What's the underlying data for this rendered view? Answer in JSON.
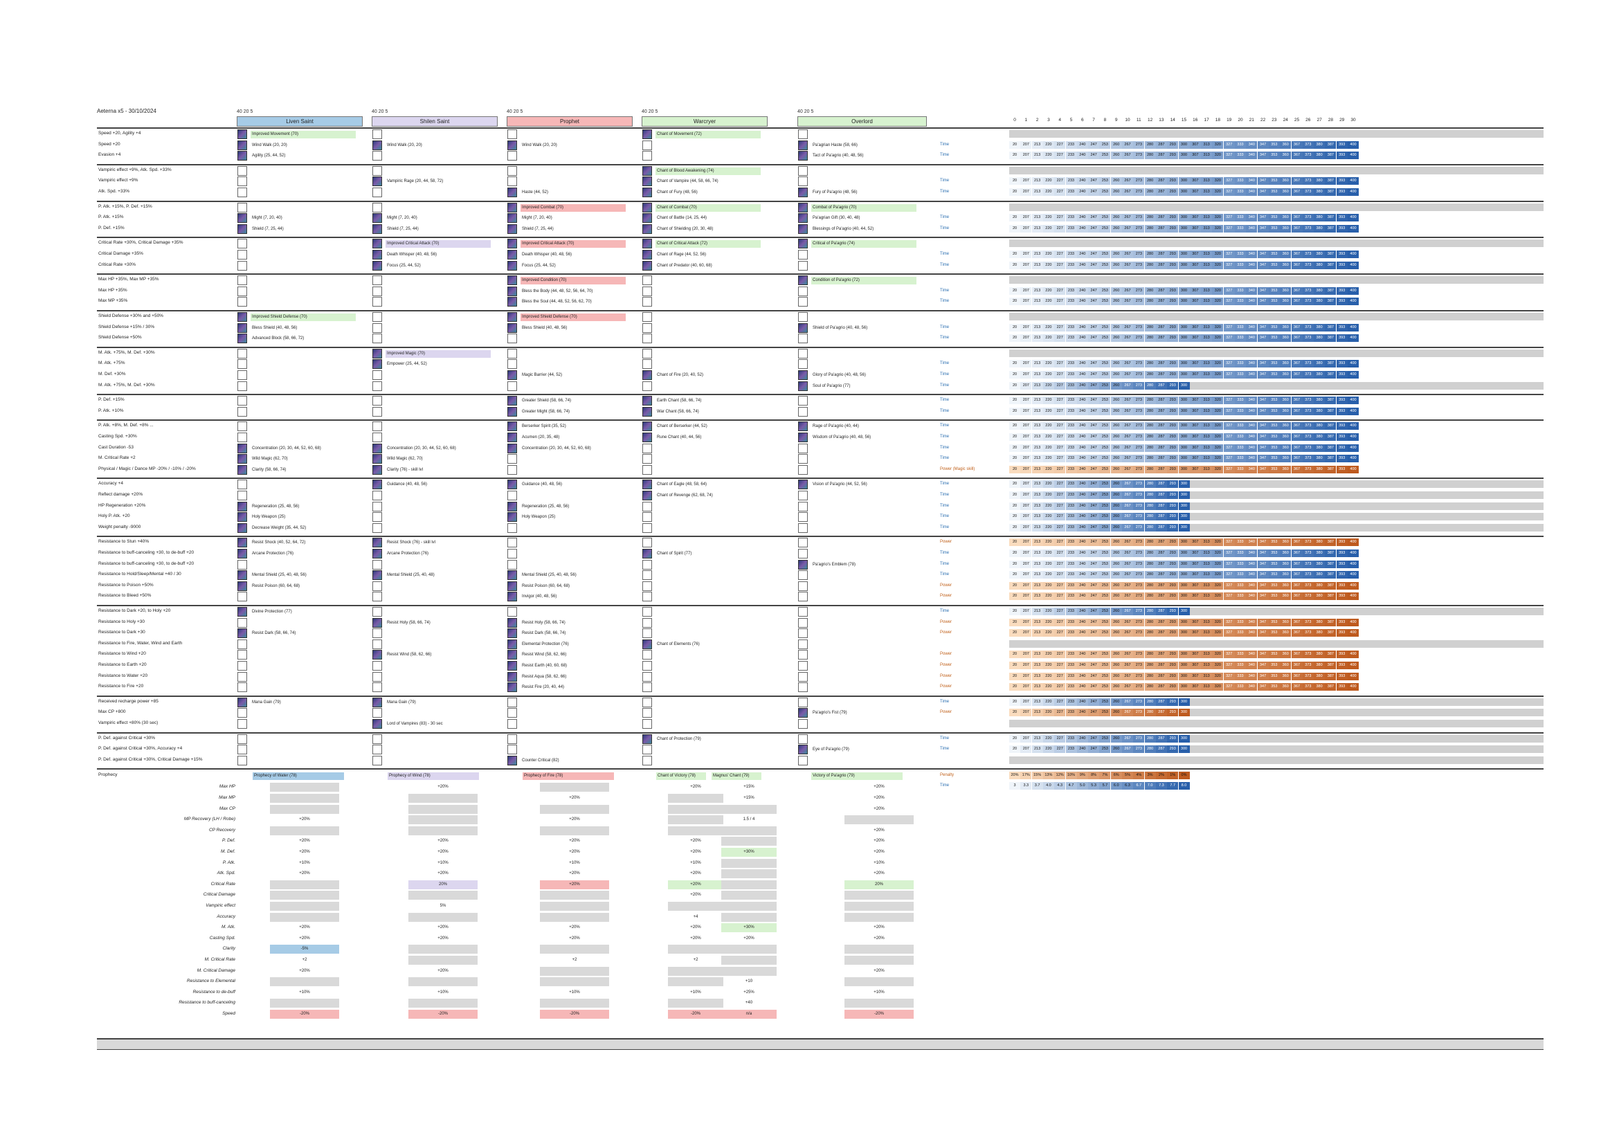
{
  "title": "Aeterna x5 - 30/10/2024",
  "classes": [
    {
      "name": "Liven Saint",
      "lvl": "40  20  5",
      "color": "#a6cbe6"
    },
    {
      "name": "Shilen Saint",
      "lvl": "40  20  5",
      "color": "#dcd6ef"
    },
    {
      "name": "Prophet",
      "lvl": "40  20  5",
      "color": "#f6b7b7"
    },
    {
      "name": "Warcryer",
      "lvl": "40  20  5",
      "color": "#d7f2cf"
    },
    {
      "name": "Overlord",
      "lvl": "40  20  5",
      "color": "#d7f2cf"
    }
  ],
  "col_numbers": [
    "0",
    "1",
    "2",
    "3",
    "4",
    "5",
    "6",
    "7",
    "8",
    "9",
    "10",
    "11",
    "12",
    "13",
    "14",
    "15",
    "16",
    "17",
    "18",
    "19",
    "20",
    "21",
    "22",
    "23",
    "24",
    "25",
    "26",
    "27",
    "28",
    "29",
    "30"
  ],
  "time_values": [
    "20",
    "207",
    "213",
    "220",
    "227",
    "233",
    "240",
    "247",
    "253",
    "260",
    "267",
    "273",
    "280",
    "287",
    "293",
    "300",
    "307",
    "313",
    "320",
    "327",
    "333",
    "340",
    "347",
    "353",
    "360",
    "367",
    "373",
    "380",
    "387",
    "393",
    "400"
  ],
  "sections": [
    {
      "rows": [
        {
          "effect": "Speed +20, Agility +4",
          "s1": "Improved Movement (70)",
          "s4": "Chant of Movement (72)",
          "tag": ""
        },
        {
          "effect": "Speed +20",
          "s1": "Wind Walk (20, 20)",
          "s2": "Wind Walk (20, 20)",
          "s3": "Wind Walk (20, 20)",
          "s5": "Pa'agrian Haste (58, 66)",
          "tag": "Time"
        },
        {
          "effect": "Evasion +4",
          "s1": "Agility (25, 44, 52)",
          "s5": "Tact of Pa'agrio (40, 48, 56)",
          "tag": "Time"
        }
      ]
    },
    {
      "rows": [
        {
          "effect": "Vampiric effect +9%, Atk. Spd. +33%",
          "s4": "Chant of Blood Awakening (74)",
          "tag": ""
        },
        {
          "effect": "Vampiric effect +9%",
          "s2": "Vampiric Rage (20, 44, 58, 72)",
          "s4": "Chant of Vampire (44, 58, 66, 74)",
          "tag": "Time"
        },
        {
          "effect": "Atk. Spd. +33%",
          "s3": "Haste (44, 52)",
          "s4": "Chant of Fury (48, 56)",
          "s5": "Fury of Pa'agrio (48, 56)",
          "tag": "Time"
        }
      ]
    },
    {
      "rows": [
        {
          "effect": "P. Atk. +15%, P. Def. +15%",
          "s3": "Improved Combat (70)",
          "s4": "Chant of Combat (70)",
          "s5": "Combat of Pa'agrio (70)",
          "tag": ""
        },
        {
          "effect": "P. Atk. +15%",
          "s1": "Might (7, 20, 40)",
          "s2": "Might (7, 20, 40)",
          "s3": "Might (7, 20, 40)",
          "s4": "Chant of Battle (14, 25, 44)",
          "s5": "Pa'agrian Gift (30, 40, 48)",
          "tag": "Time"
        },
        {
          "effect": "P. Def. +15%",
          "s1": "Shield (7, 25, 44)",
          "s2": "Shield (7, 25, 44)",
          "s3": "Shield (7, 25, 44)",
          "s4": "Chant of Shielding (20, 30, 48)",
          "s5": "Blessings of Pa'agrio (40, 44, 52)",
          "tag": "Time"
        }
      ]
    },
    {
      "rows": [
        {
          "effect": "Critical Rate +30%, Critical Damage +35%",
          "s2": "Improved Critical Attack (70)",
          "s3": "Improved Critical Attack (70)",
          "s4": "Chant of Critical Attack (72)",
          "s5": "Critical of Pa'agrio (74)",
          "tag": ""
        },
        {
          "effect": "Critical Damage +35%",
          "s2": "Death Whisper (40, 48, 56)",
          "s3": "Death Whisper (40, 48, 56)",
          "s4": "Chant of Rage (44, 52, 56)",
          "tag": "Time"
        },
        {
          "effect": "Critical Rate +30%",
          "s2": "Focus (25, 44, 52)",
          "s3": "Focus (25, 44, 52)",
          "s4": "Chant of Predator (40, 60, 68)",
          "tag": "Time"
        }
      ]
    },
    {
      "rows": [
        {
          "effect": "Max HP +35%, Max MP +35%",
          "s3": "Improved Condition (70)",
          "s5": "Condition of Pa'agrio (72)",
          "tag": ""
        },
        {
          "effect": "Max HP +35%",
          "s3": "Bless the Body (44, 48, 52, 56, 64, 70)",
          "tag": "Time"
        },
        {
          "effect": "Max MP +35%",
          "s3": "Bless the Soul (44, 48, 52, 56, 62, 70)",
          "tag": "Time"
        }
      ]
    },
    {
      "rows": [
        {
          "effect": "Shield Defense +30% and +50%",
          "s1": "Improved Shield Defense (70)",
          "s3": "Improved Shield Defense (70)",
          "tag": ""
        },
        {
          "effect": "Shield Defense +15% / 30%",
          "s1": "Bless Shield (40, 48, 56)",
          "s3": "Bless Shield (40, 48, 56)",
          "s5": "Shield of Pa'agrio (40, 48, 56)",
          "tag": "Time"
        },
        {
          "effect": "Shield Defense +50%",
          "s1": "Advanced Block (58, 66, 72)",
          "tag": "Time"
        }
      ]
    },
    {
      "rows": [
        {
          "effect": "M. Atk. +75%, M. Def. +30%",
          "s2": "Improved Magic (70)",
          "tag": ""
        },
        {
          "effect": "M. Atk. +75%",
          "s2": "Empower (25, 44, 52)",
          "tag": "Time"
        },
        {
          "effect": "M. Def. +30%",
          "s3": "Magic Barrier (44, 52)",
          "s4": "Chant of Fire (20, 40, 52)",
          "s5": "Glory of Pa'agrio (40, 48, 56)",
          "tag": "Time"
        },
        {
          "effect": "M. Atk. +75%, M. Def. +30%",
          "s5": "Soul of Pa'agrio (77)",
          "tag": "Time"
        }
      ]
    },
    {
      "rows": [
        {
          "effect": "P. Def. +15%",
          "s3": "Greater Shield (58, 66, 74)",
          "s4": "Earth Chant (58, 66, 74)",
          "tag": "Time"
        },
        {
          "effect": "P. Atk. +10%",
          "s3": "Greater Might (58, 66, 74)",
          "s4": "War Chant (58, 66, 74)",
          "tag": "Time"
        }
      ]
    },
    {
      "rows": [
        {
          "effect": "P. Atk. +8%, M. Def. +8% ...",
          "s3": "Berserker Spirit (35, 52)",
          "s4": "Chant of Berserker (44, 52)",
          "s5": "Rage of Pa'agrio (40, 44)",
          "tag": "Time"
        },
        {
          "effect": "Casting Spd. +30%",
          "s3": "Acumen (20, 35, 48)",
          "s4": "Rune Chant (40, 44, 56)",
          "s5": "Wisdom of Pa'agrio (40, 48, 56)",
          "tag": "Time"
        },
        {
          "effect": "Cast Duration -53",
          "s1": "Concentration (20, 30, 44, 52, 60, 68)",
          "s2": "Concentration (20, 30, 44, 52, 60, 68)",
          "s3": "Concentration (20, 30, 44, 52, 60, 68)",
          "tag": "Time"
        },
        {
          "effect": "M. Critical Rate +2",
          "s1": "Wild Magic (62, 70)",
          "s2": "Wild Magic (62, 70)",
          "tag": "Time"
        },
        {
          "effect": "Physical / Magic / Dance MP -20% / -10% / -20%",
          "s1": "Clarity (58, 66, 74)",
          "s2": "Clarity (76) - skill lvl",
          "tag": "Power (Magic skill)"
        }
      ]
    },
    {
      "rows": [
        {
          "effect": "Accuracy +4",
          "s2": "Guidance (40, 48, 56)",
          "s3": "Guidance (40, 48, 56)",
          "s4": "Chant of Eagle (48, 58, 64)",
          "s5": "Vision of Pa'agrio (44, 52, 56)",
          "tag": "Time"
        },
        {
          "effect": "Reflect damage +20%",
          "s4": "Chant of Revenge (62, 68, 74)",
          "tag": "Time"
        },
        {
          "effect": "HP Regeneration +20%",
          "s1": "Regeneration (25, 48, 56)",
          "s3": "Regeneration (25, 48, 56)",
          "tag": "Time"
        },
        {
          "effect": "Holy P. Atk. +20",
          "s1": "Holy Weapon (25)",
          "s3": "Holy Weapon (25)",
          "tag": "Time"
        },
        {
          "effect": "Weight penalty -9000",
          "s1": "Decrease Weight (35, 44, 52)",
          "tag": "Time"
        }
      ]
    },
    {
      "rows": [
        {
          "effect": "Resistance to Stun +40%",
          "s1": "Resist Shock (40, 52, 64, 72)",
          "s2": "Resist Shock (76) - skill lvl",
          "tag": "Power"
        },
        {
          "effect": "Resistance to buff-canceling +30, to de-buff +20",
          "s1": "Arcane Protection (76)",
          "s2": "Arcane Protection (76)",
          "s4": "Chant of Spirit (77)",
          "tag": "Time"
        },
        {
          "effect": "Resistance to buff-canceling +30, to de-buff +20",
          "s5": "Pa'agrio's Emblem (78)",
          "tag": "Time"
        },
        {
          "effect": "Resistance to Hold/Sleep/Mental +40 / 30",
          "s1": "Mental Shield (25, 40, 48, 56)",
          "s2": "Mental Shield (25, 40, 48)",
          "s3": "Mental Shield (25, 40, 48, 56)",
          "tag": "Time"
        },
        {
          "effect": "Resistance to Poison +50%",
          "s1": "Resist Poison (60, 64, 68)",
          "s3": "Resist Poison (60, 64, 68)",
          "tag": "Power"
        },
        {
          "effect": "Resistance to Bleed +50%",
          "s3": "Invigor (40, 48, 56)",
          "tag": "Power"
        }
      ]
    },
    {
      "rows": [
        {
          "effect": "Resistance to Dark +20, to Holy +20",
          "s1": "Divine Protection (77)",
          "tag": "Time"
        },
        {
          "effect": "Resistance to Holy +30",
          "s2": "Resist Holy (58, 66, 74)",
          "s3": "Resist Holy (58, 66, 74)",
          "tag": "Power"
        },
        {
          "effect": "Resistance to Dark +30",
          "s1": "Resist Dark (58, 66, 74)",
          "s3": "Resist Dark (58, 66, 74)",
          "tag": "Power"
        },
        {
          "effect": "Resistance to Fire, Water, Wind and Earth",
          "s3": "Elemental Protection (76)",
          "s4": "Chant of Elements (76)",
          "tag": ""
        },
        {
          "effect": "Resistance to Wind +20",
          "s2": "Resist Wind (58, 62, 66)",
          "s3": "Resist Wind (58, 62, 66)",
          "tag": "Power"
        },
        {
          "effect": "Resistance to Earth +20",
          "s3": "Resist Earth (40, 60, 68)",
          "tag": "Power"
        },
        {
          "effect": "Resistance to Water +20",
          "s3": "Resist Aqua (58, 62, 66)",
          "tag": "Power"
        },
        {
          "effect": "Resistance to Fire +20",
          "s3": "Resist Fire (20, 40, 44)",
          "tag": "Power"
        }
      ]
    },
    {
      "rows": [
        {
          "effect": "Received recharge power +85",
          "s1": "Mana Gain (79)",
          "s2": "Mana Gain (79)",
          "tag": "Time"
        },
        {
          "effect": "Max CP +800",
          "s5": "Pa'agrio's Fist (79)",
          "tag": "Power"
        },
        {
          "effect": "Vampiric effect +80% (30 sec)",
          "s2": "Lord of Vampires (83) - 30 sec",
          "tag": ""
        }
      ]
    },
    {
      "rows": [
        {
          "effect": "P. Def. against Critical +30%",
          "s4": "Chant of Protection (79)",
          "tag": "Time"
        },
        {
          "effect": "P. Def. against Critical +30%, Accuracy +4",
          "s5": "Eye of Pa'agrio (79)",
          "tag": "Time"
        },
        {
          "effect": "P. Def. against Critical +30%, Critical Damage +15%",
          "s3": "Counter Critical (82)",
          "tag": ""
        }
      ]
    }
  ],
  "prophecy": {
    "label": "Prophecy",
    "skills": [
      "Prophecy of Water (78)",
      "Prophecy of Wind (78)",
      "Prophecy of Fire (78)",
      "Chant of Victory (78)",
      "Magnus' Chant (79)",
      "Victory of Pa'agrio (79)"
    ],
    "tag1": "Penalty",
    "tag2": "Time",
    "penalty_values": [
      "20%",
      "17%",
      "15%",
      "13%",
      "12%",
      "10%",
      "9%",
      "8%",
      "7%",
      "6%",
      "5%",
      "4%",
      "3%",
      "2%",
      "1%",
      "0%"
    ],
    "time_values": [
      "3",
      "3.3",
      "3.7",
      "4.0",
      "4.3",
      "4.7",
      "5.0",
      "5.3",
      "5.7",
      "6.0",
      "6.3",
      "6.7",
      "7.0",
      "7.3",
      "7.7",
      "8.0"
    ],
    "stats": [
      {
        "label": "Max HP",
        "v": [
          "",
          "+20%",
          "",
          "+20%",
          "+15%",
          "+20%"
        ]
      },
      {
        "label": "Max MP",
        "v": [
          "",
          "",
          "+20%",
          "",
          "+15%",
          "+20%"
        ]
      },
      {
        "label": "Max CP",
        "v": [
          "",
          "",
          "",
          "",
          "",
          "+20%"
        ]
      },
      {
        "label": "MP Recovery (LH / Robe)",
        "v": [
          "+20%",
          "",
          "+20%",
          "",
          "1.5 / 4",
          ""
        ]
      },
      {
        "label": "CP Recovery",
        "v": [
          "",
          "",
          "",
          "",
          "",
          "+20%"
        ]
      },
      {
        "label": "P. Def.",
        "v": [
          "+20%",
          "+20%",
          "+20%",
          "+20%",
          "",
          "+20%"
        ]
      },
      {
        "label": "M. Def.",
        "v": [
          "+20%",
          "+20%",
          "+20%",
          "+20%",
          "+30%",
          "+20%"
        ]
      },
      {
        "label": "P. Atk.",
        "v": [
          "+10%",
          "+10%",
          "+10%",
          "+10%",
          "",
          "+10%"
        ]
      },
      {
        "label": "Atk. Spd.",
        "v": [
          "+20%",
          "+20%",
          "+20%",
          "+20%",
          "",
          "+20%"
        ]
      },
      {
        "label": "Critical Rate",
        "v": [
          "",
          "20%",
          "+20%",
          "+20%",
          "",
          "20%"
        ]
      },
      {
        "label": "Critical Damage",
        "v": [
          "",
          "",
          "",
          "+20%",
          "",
          ""
        ]
      },
      {
        "label": "Vampiric effect",
        "v": [
          "",
          "5%",
          "",
          "",
          "",
          ""
        ]
      },
      {
        "label": "Accuracy",
        "v": [
          "",
          "",
          "",
          "+4",
          "",
          ""
        ]
      },
      {
        "label": "M. Atk.",
        "v": [
          "+20%",
          "+20%",
          "+20%",
          "+20%",
          "+30%",
          "+20%"
        ]
      },
      {
        "label": "Casting Spd.",
        "v": [
          "+20%",
          "+20%",
          "+20%",
          "+20%",
          "+20%",
          "+20%"
        ]
      },
      {
        "label": "Clarity",
        "v": [
          "-5%",
          "",
          "",
          "",
          "",
          ""
        ]
      },
      {
        "label": "M. Critical Rate",
        "v": [
          "+2",
          "",
          "+2",
          "+2",
          "",
          ""
        ]
      },
      {
        "label": "M. Critical Damage",
        "v": [
          "+20%",
          "+20%",
          "",
          "",
          "",
          "+20%"
        ]
      },
      {
        "label": "Resistance to Elemental",
        "v": [
          "",
          "",
          "",
          "",
          "+10",
          ""
        ]
      },
      {
        "label": "Resistance to de-buff",
        "v": [
          "+10%",
          "+10%",
          "+10%",
          "+10%",
          "+25%",
          "+10%"
        ]
      },
      {
        "label": "Resistance to buff-canceling",
        "v": [
          "",
          "",
          "",
          "",
          "+40",
          ""
        ]
      },
      {
        "label": "Speed",
        "v": [
          "-20%",
          "-20%",
          "-20%",
          "-20%",
          "n/a",
          "-20%"
        ]
      }
    ]
  }
}
